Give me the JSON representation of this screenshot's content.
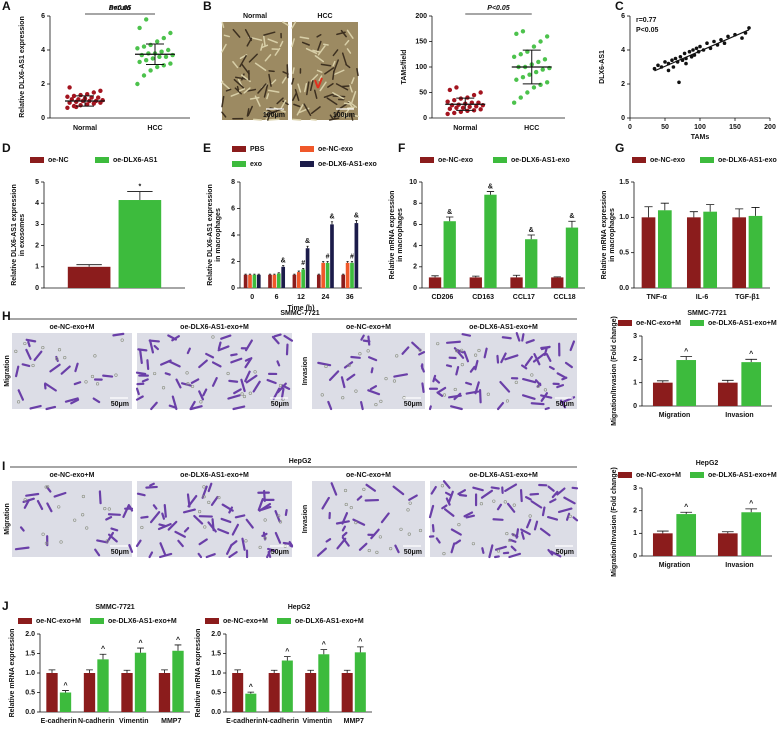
{
  "figure": {
    "panel_labels": [
      "A",
      "B",
      "C",
      "D",
      "E",
      "F",
      "G",
      "H",
      "I",
      "J"
    ],
    "B_images": [
      {
        "label": "Normal",
        "scale_bar": "100μm"
      },
      {
        "label": "HCC",
        "scale_bar": "100μm"
      }
    ],
    "H": {
      "header": "SMMC-7721",
      "rows": [
        "Migration",
        "Invasion"
      ],
      "images": [
        {
          "label": "oe-NC-exo+M",
          "scale_bar": "50μm"
        },
        {
          "label": "oe-DLX6-AS1-exo+M",
          "scale_bar": "50μm"
        },
        {
          "label": "oe-NC-exo+M",
          "scale_bar": "50μm"
        },
        {
          "label": "oe-DLX6-AS1-exo+M",
          "scale_bar": "50μm"
        }
      ]
    },
    "I": {
      "header": "HepG2",
      "rows": [
        "Migration",
        "Invasion"
      ],
      "images": [
        {
          "label": "oe-NC-exo+M",
          "scale_bar": "50μm"
        },
        {
          "label": "oe-DLX6-AS1-exo+M",
          "scale_bar": "50μm"
        },
        {
          "label": "oe-NC-exo+M",
          "scale_bar": "50μm"
        },
        {
          "label": "oe-DLX6-AS1-exo+M",
          "scale_bar": "50μm"
        }
      ]
    }
  },
  "chart_data": [
    {
      "type": "dot",
      "title": "serum",
      "ylabel": [
        "Relative DLX6-AS1 expression"
      ],
      "categories": [
        "Normal",
        "HCC"
      ],
      "colors": [
        "#a3141f",
        "#4cc24c"
      ],
      "values": [
        [
          0.6,
          0.7,
          0.75,
          0.8,
          0.85,
          0.9,
          0.9,
          0.95,
          1.0,
          1.0,
          1.0,
          1.05,
          1.1,
          1.1,
          1.15,
          1.2,
          1.2,
          1.25,
          1.3,
          1.35,
          1.4,
          1.5,
          1.6,
          1.8,
          0.65
        ],
        [
          2.0,
          2.5,
          2.8,
          3.0,
          3.1,
          3.2,
          3.3,
          3.4,
          3.5,
          3.6,
          3.6,
          3.7,
          3.7,
          3.8,
          3.8,
          3.9,
          4.0,
          4.1,
          4.2,
          4.3,
          4.5,
          4.7,
          5.0,
          5.3,
          5.8
        ]
      ],
      "mean": [
        1.0,
        3.75
      ],
      "sd": [
        0.3,
        0.6
      ],
      "annotation": "P<0.05",
      "ylim": [
        0,
        6
      ],
      "yticks": [
        0,
        2,
        4,
        6
      ]
    },
    {
      "type": "dot",
      "ylabel": [
        "TAMs/field"
      ],
      "categories": [
        "Normal",
        "HCC"
      ],
      "colors": [
        "#a3141f",
        "#4cc24c"
      ],
      "values": [
        [
          8,
          10,
          12,
          14,
          15,
          17,
          18,
          20,
          20,
          22,
          23,
          25,
          25,
          26,
          28,
          30,
          30,
          32,
          35,
          38,
          40,
          45,
          50,
          55,
          60
        ],
        [
          30,
          40,
          50,
          60,
          65,
          70,
          75,
          80,
          85,
          90,
          95,
          98,
          100,
          100,
          105,
          110,
          115,
          120,
          125,
          130,
          140,
          150,
          160,
          165,
          170
        ]
      ],
      "mean": [
        27,
        100
      ],
      "sd": [
        12,
        33
      ],
      "annotation": "P<0.05",
      "ylim": [
        0,
        200
      ],
      "yticks": [
        0,
        50,
        100,
        150,
        200
      ]
    },
    {
      "type": "scatter",
      "xlabel": "TAMs",
      "ylabel": [
        "DLX6-AS1"
      ],
      "annotations": [
        "r=0.77",
        "P<0.05"
      ],
      "color": "#111111",
      "x": [
        35,
        40,
        45,
        50,
        55,
        55,
        60,
        62,
        65,
        68,
        70,
        72,
        75,
        78,
        80,
        80,
        85,
        88,
        90,
        92,
        95,
        98,
        100,
        105,
        110,
        115,
        120,
        125,
        130,
        135,
        140,
        150,
        160,
        165,
        170
      ],
      "y": [
        2.9,
        3.1,
        3.0,
        3.3,
        3.2,
        2.8,
        3.4,
        3.0,
        3.5,
        3.3,
        2.1,
        3.6,
        3.4,
        3.8,
        3.5,
        3.2,
        3.9,
        3.6,
        4.0,
        3.7,
        4.1,
        3.9,
        4.2,
        4.0,
        4.4,
        4.1,
        4.5,
        4.3,
        4.6,
        4.4,
        4.8,
        4.9,
        4.7,
        5.0,
        5.3
      ],
      "xlim": [
        0,
        200
      ],
      "xticks": [
        0,
        50,
        100,
        150,
        200
      ],
      "ylim": [
        0,
        6
      ],
      "yticks": [
        0,
        2,
        4,
        6
      ]
    },
    {
      "type": "bar",
      "ylabel": [
        "Relative DLX6-AS1 expression",
        "in exosomes"
      ],
      "categories": [
        null
      ],
      "series": [
        {
          "name": "oe-NC",
          "color": "#8b1c1c",
          "values": [
            1.0
          ],
          "errors": [
            0.1
          ]
        },
        {
          "name": "oe-DLX6-AS1",
          "color": "#3dbb3d",
          "values": [
            4.15
          ],
          "errors": [
            0.4
          ],
          "annotations": [
            "*"
          ]
        }
      ],
      "ylim": [
        0,
        5
      ],
      "yticks": [
        0,
        1,
        2,
        3,
        4,
        5
      ]
    },
    {
      "type": "bar",
      "ylabel": [
        "Relative DLX6-AS1 expression",
        "in macrophages"
      ],
      "xlabel": "Time (h)",
      "categories": [
        "0",
        "6",
        "12",
        "24",
        "36"
      ],
      "series": [
        {
          "name": "PBS",
          "color": "#8b1c1c",
          "values": [
            1.0,
            1.0,
            1.0,
            1.0,
            1.0
          ],
          "errors": [
            0.05,
            0.05,
            0.05,
            0.05,
            0.05
          ]
        },
        {
          "name": "oe-NC-exo",
          "color": "#f0582a",
          "values": [
            1.0,
            1.0,
            1.2,
            1.9,
            1.9
          ],
          "errors": [
            0.05,
            0.05,
            0.08,
            0.1,
            0.1
          ]
        },
        {
          "name": "exo",
          "color": "#3dbb3d",
          "values": [
            1.0,
            1.1,
            1.4,
            1.9,
            1.9
          ],
          "errors": [
            0.05,
            0.05,
            0.08,
            0.1,
            0.1
          ],
          "annotations": [
            null,
            null,
            "#",
            "#",
            "#"
          ]
        },
        {
          "name": "oe-DLX6-AS1-exo",
          "color": "#1c1c4a",
          "values": [
            1.0,
            1.6,
            3.0,
            4.8,
            4.9
          ],
          "errors": [
            0.05,
            0.1,
            0.15,
            0.2,
            0.2
          ],
          "annotations": [
            null,
            "&",
            "&",
            "&",
            "&"
          ]
        }
      ],
      "ylim": [
        0,
        8
      ],
      "yticks": [
        0,
        2,
        4,
        6,
        8
      ]
    },
    {
      "type": "bar",
      "ylabel": [
        "Relative mRNA expression",
        "in macrophages"
      ],
      "categories": [
        "CD206",
        "CD163",
        "CCL17",
        "CCL18"
      ],
      "series": [
        {
          "name": "oe-NC-exo",
          "color": "#8b1c1c",
          "values": [
            1.0,
            1.0,
            1.0,
            1.0
          ],
          "errors": [
            0.15,
            0.12,
            0.2,
            0.05
          ]
        },
        {
          "name": "oe-DLX6-AS1-exo",
          "color": "#3dbb3d",
          "values": [
            6.3,
            8.8,
            4.6,
            5.7
          ],
          "errors": [
            0.4,
            0.3,
            0.4,
            0.6
          ],
          "annotations": [
            "&",
            "&",
            "&",
            "&"
          ]
        }
      ],
      "ylim": [
        0,
        10
      ],
      "yticks": [
        0,
        2,
        4,
        6,
        8,
        10
      ]
    },
    {
      "type": "bar",
      "ylabel": [
        "Relative mRNA expression",
        "in macrophages"
      ],
      "categories": [
        "TNF-α",
        "IL-6",
        "TGF-β1"
      ],
      "series": [
        {
          "name": "oe-NC-exo",
          "color": "#8b1c1c",
          "values": [
            1.0,
            1.0,
            1.0
          ],
          "errors": [
            0.15,
            0.08,
            0.12
          ]
        },
        {
          "name": "oe-DLX6-AS1-exo",
          "color": "#3dbb3d",
          "values": [
            1.1,
            1.08,
            1.02
          ],
          "errors": [
            0.1,
            0.1,
            0.12
          ]
        }
      ],
      "ylim": [
        0,
        1.5
      ],
      "yticks": [
        {
          "value": 0,
          "label": "0.0"
        },
        0.5,
        {
          "value": 1,
          "label": "1.0"
        },
        1.5
      ]
    },
    {
      "type": "bar",
      "title": "SMMC-7721",
      "ylabel": [
        "Migration/Invasion (Fold change)"
      ],
      "categories": [
        "Migration",
        "Invasion"
      ],
      "series": [
        {
          "name": "oe-NC-exo+M",
          "color": "#8b1c1c",
          "values": [
            1.0,
            1.0
          ],
          "errors": [
            0.08,
            0.1
          ]
        },
        {
          "name": "oe-DLX6-AS1-exo+M",
          "color": "#3dbb3d",
          "values": [
            1.97,
            1.88
          ],
          "errors": [
            0.15,
            0.12
          ],
          "annotations": [
            "^",
            "^"
          ]
        }
      ],
      "ylim": [
        0,
        3
      ],
      "yticks": [
        0,
        1,
        2,
        3
      ]
    },
    {
      "type": "bar",
      "title": "HepG2",
      "ylabel": [
        "Migration/Invasion (Fold change)"
      ],
      "categories": [
        "Migration",
        "Invasion"
      ],
      "series": [
        {
          "name": "oe-NC-exo+M",
          "color": "#8b1c1c",
          "values": [
            1.0,
            1.0
          ],
          "errors": [
            0.1,
            0.07
          ]
        },
        {
          "name": "oe-DLX6-AS1-exo+M",
          "color": "#3dbb3d",
          "values": [
            1.85,
            1.93
          ],
          "errors": [
            0.08,
            0.15
          ],
          "annotations": [
            "^",
            "^"
          ]
        }
      ],
      "ylim": [
        0,
        3
      ],
      "yticks": [
        0,
        1,
        2,
        3
      ]
    },
    {
      "type": "bar",
      "title": "SMMC-7721",
      "ylabel": [
        "Relative mRNA expression"
      ],
      "categories": [
        "E-cadherin",
        "N-cadherin",
        "Vimentin",
        "MMP7"
      ],
      "series": [
        {
          "name": "oe-NC-exo+M",
          "color": "#8b1c1c",
          "values": [
            1.0,
            1.0,
            1.0,
            1.0
          ],
          "errors": [
            0.08,
            0.08,
            0.07,
            0.08
          ]
        },
        {
          "name": "oe-DLX6-AS1-exo+M",
          "color": "#3dbb3d",
          "values": [
            0.5,
            1.35,
            1.52,
            1.57
          ],
          "errors": [
            0.05,
            0.13,
            0.12,
            0.15
          ],
          "annotations": [
            "^",
            "^",
            "^",
            "^"
          ]
        }
      ],
      "ylim": [
        0,
        2
      ],
      "yticks": [
        {
          "value": 0,
          "label": "0.0"
        },
        0.5,
        {
          "value": 1,
          "label": "1.0"
        },
        1.5,
        {
          "value": 2,
          "label": "2.0"
        }
      ]
    },
    {
      "type": "bar",
      "title": "HepG2",
      "ylabel": [
        "Relative mRNA expression"
      ],
      "categories": [
        "E-cadherin",
        "N-cadherin",
        "Vimentin",
        "MMP7"
      ],
      "series": [
        {
          "name": "oe-NC-exo+M",
          "color": "#8b1c1c",
          "values": [
            1.0,
            1.0,
            1.0,
            1.0
          ],
          "errors": [
            0.08,
            0.07,
            0.07,
            0.07
          ]
        },
        {
          "name": "oe-DLX6-AS1-exo+M",
          "color": "#3dbb3d",
          "values": [
            0.47,
            1.32,
            1.48,
            1.53
          ],
          "errors": [
            0.04,
            0.1,
            0.12,
            0.14
          ],
          "annotations": [
            "^",
            "^",
            "^",
            "^"
          ]
        }
      ],
      "ylim": [
        0,
        2
      ],
      "yticks": [
        {
          "value": 0,
          "label": "0.0"
        },
        0.5,
        {
          "value": 1,
          "label": "1.0"
        },
        1.5,
        {
          "value": 2,
          "label": "2.0"
        }
      ]
    }
  ]
}
